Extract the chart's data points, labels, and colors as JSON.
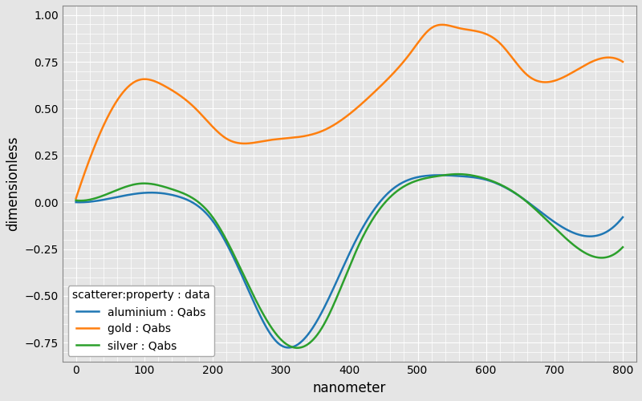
{
  "title": "",
  "xlabel": "nanometer",
  "ylabel": "dimensionless",
  "xlim": [
    -20,
    820
  ],
  "ylim": [
    -0.85,
    1.05
  ],
  "legend_title": "scatterer:property : data",
  "legend_entries": [
    "aluminium : Qabs",
    "gold : Qabs",
    "silver : Qabs"
  ],
  "line_colors": [
    "#1f77b4",
    "#ff7f0e",
    "#2ca02c"
  ],
  "background_color": "#e5e5e5",
  "grid_color": "#ffffff",
  "figsize": [
    8.0,
    5.0
  ],
  "dpi": 100,
  "xticks": [
    0,
    100,
    200,
    300,
    400,
    500,
    600,
    700,
    800
  ],
  "yticks": [
    -0.75,
    -0.5,
    -0.25,
    0.0,
    0.25,
    0.5,
    0.75,
    1.0
  ]
}
